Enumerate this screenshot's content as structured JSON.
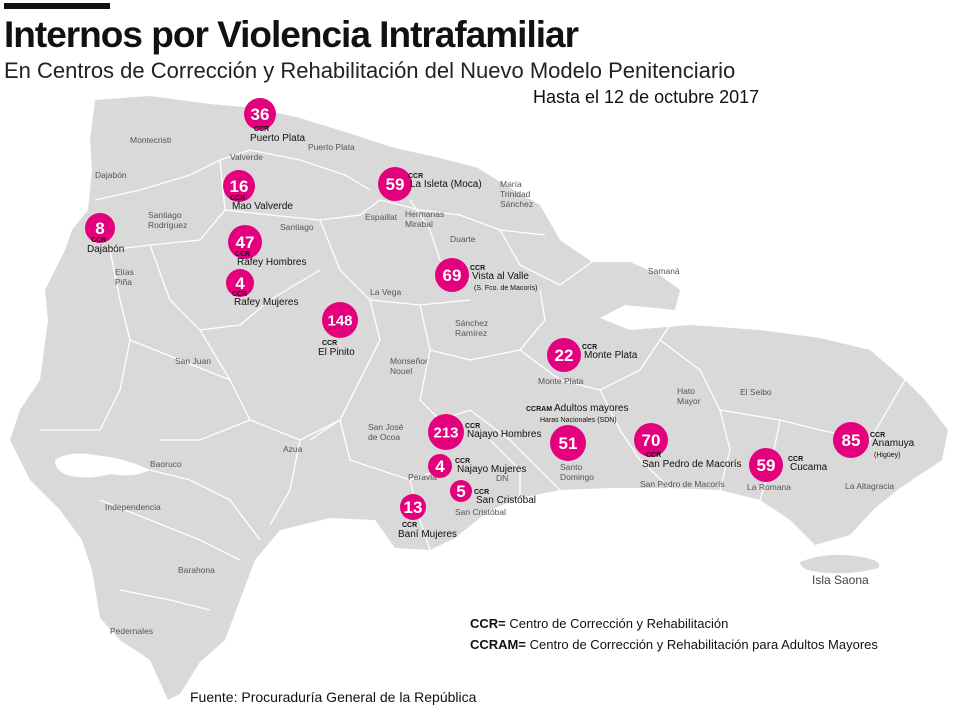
{
  "header": {
    "title": "Internos por Violencia Intrafamiliar",
    "subtitle": "En Centros de Corrección y Rehabilitación del Nuevo Modelo Penitenciario",
    "date": "Hasta el 12 de octubre 2017"
  },
  "map": {
    "country_fill": "#d9d9d9",
    "border_color": "#ffffff",
    "marker_color": "#e4007c",
    "regions": [
      "Montecristi",
      "Puerto Plata",
      "Valverde",
      "Dajabón",
      "Santiago Rodríguez",
      "Santiago",
      "Espaillat",
      "Hermanas Mirabal",
      "María Trinidad Sánchez",
      "Duarte",
      "Samaná",
      "Elías Piña",
      "La Vega",
      "Sánchez Ramírez",
      "San Juan",
      "Monseñor Nouel",
      "Monte Plata",
      "Hato Mayor",
      "El Seibo",
      "San José de Ocoa",
      "Azua",
      "Baoruco",
      "Independencia",
      "Peravia",
      "DN",
      "Santo Domingo",
      "San Pedro de Macorís",
      "La Romana",
      "La Altagracia",
      "San Cristóbal",
      "Barahona",
      "Pedernales"
    ],
    "island_label": "Isla Saona"
  },
  "centers": [
    {
      "value": 36,
      "prefix": "CCR",
      "name": "Puerto Plata",
      "sub": ""
    },
    {
      "value": 16,
      "prefix": "CCR",
      "name": "Mao Valverde",
      "sub": ""
    },
    {
      "value": 8,
      "prefix": "CCR",
      "name": "Dajabón",
      "sub": ""
    },
    {
      "value": 47,
      "prefix": "CCR",
      "name": "Rafey Hombres",
      "sub": ""
    },
    {
      "value": 4,
      "prefix": "CCR",
      "name": "Rafey Mujeres",
      "sub": ""
    },
    {
      "value": 59,
      "prefix": "CCR",
      "name": "La Isleta (Moca)",
      "sub": ""
    },
    {
      "value": 69,
      "prefix": "CCR",
      "name": "Vista al Valle",
      "sub": "(S. Fco. de Macorís)"
    },
    {
      "value": 148,
      "prefix": "CCR",
      "name": "El Pinito",
      "sub": ""
    },
    {
      "value": 22,
      "prefix": "CCR",
      "name": "Monte Plata",
      "sub": ""
    },
    {
      "value": 51,
      "prefix": "CCRAM",
      "name": "Adultos mayores",
      "sub": "Haras Nacionales (SDN)"
    },
    {
      "value": 213,
      "prefix": "CCR",
      "name": "Najayo Hombres",
      "sub": ""
    },
    {
      "value": 4,
      "prefix": "CCR",
      "name": "Najayo Mujeres",
      "sub": ""
    },
    {
      "value": 5,
      "prefix": "CCR",
      "name": "San Cristóbal",
      "sub": ""
    },
    {
      "value": 13,
      "prefix": "CCR",
      "name": "Baní Mujeres",
      "sub": ""
    },
    {
      "value": 70,
      "prefix": "CCR",
      "name": "San Pedro de Macorís",
      "sub": ""
    },
    {
      "value": 59,
      "prefix": "CCR",
      "name": "Cucama",
      "sub": ""
    },
    {
      "value": 85,
      "prefix": "CCR",
      "name": "Anamuya",
      "sub": "(Higüey)"
    }
  ],
  "legend": {
    "ccr_abbr": "CCR=",
    "ccr_text": "Centro de Corrección y Rehabilitación",
    "ccram_abbr": "CCRAM=",
    "ccram_text": "Centro de Corrección y Rehabilitación para Adultos Mayores"
  },
  "source": "Fuente: Procuraduría General de la República"
}
